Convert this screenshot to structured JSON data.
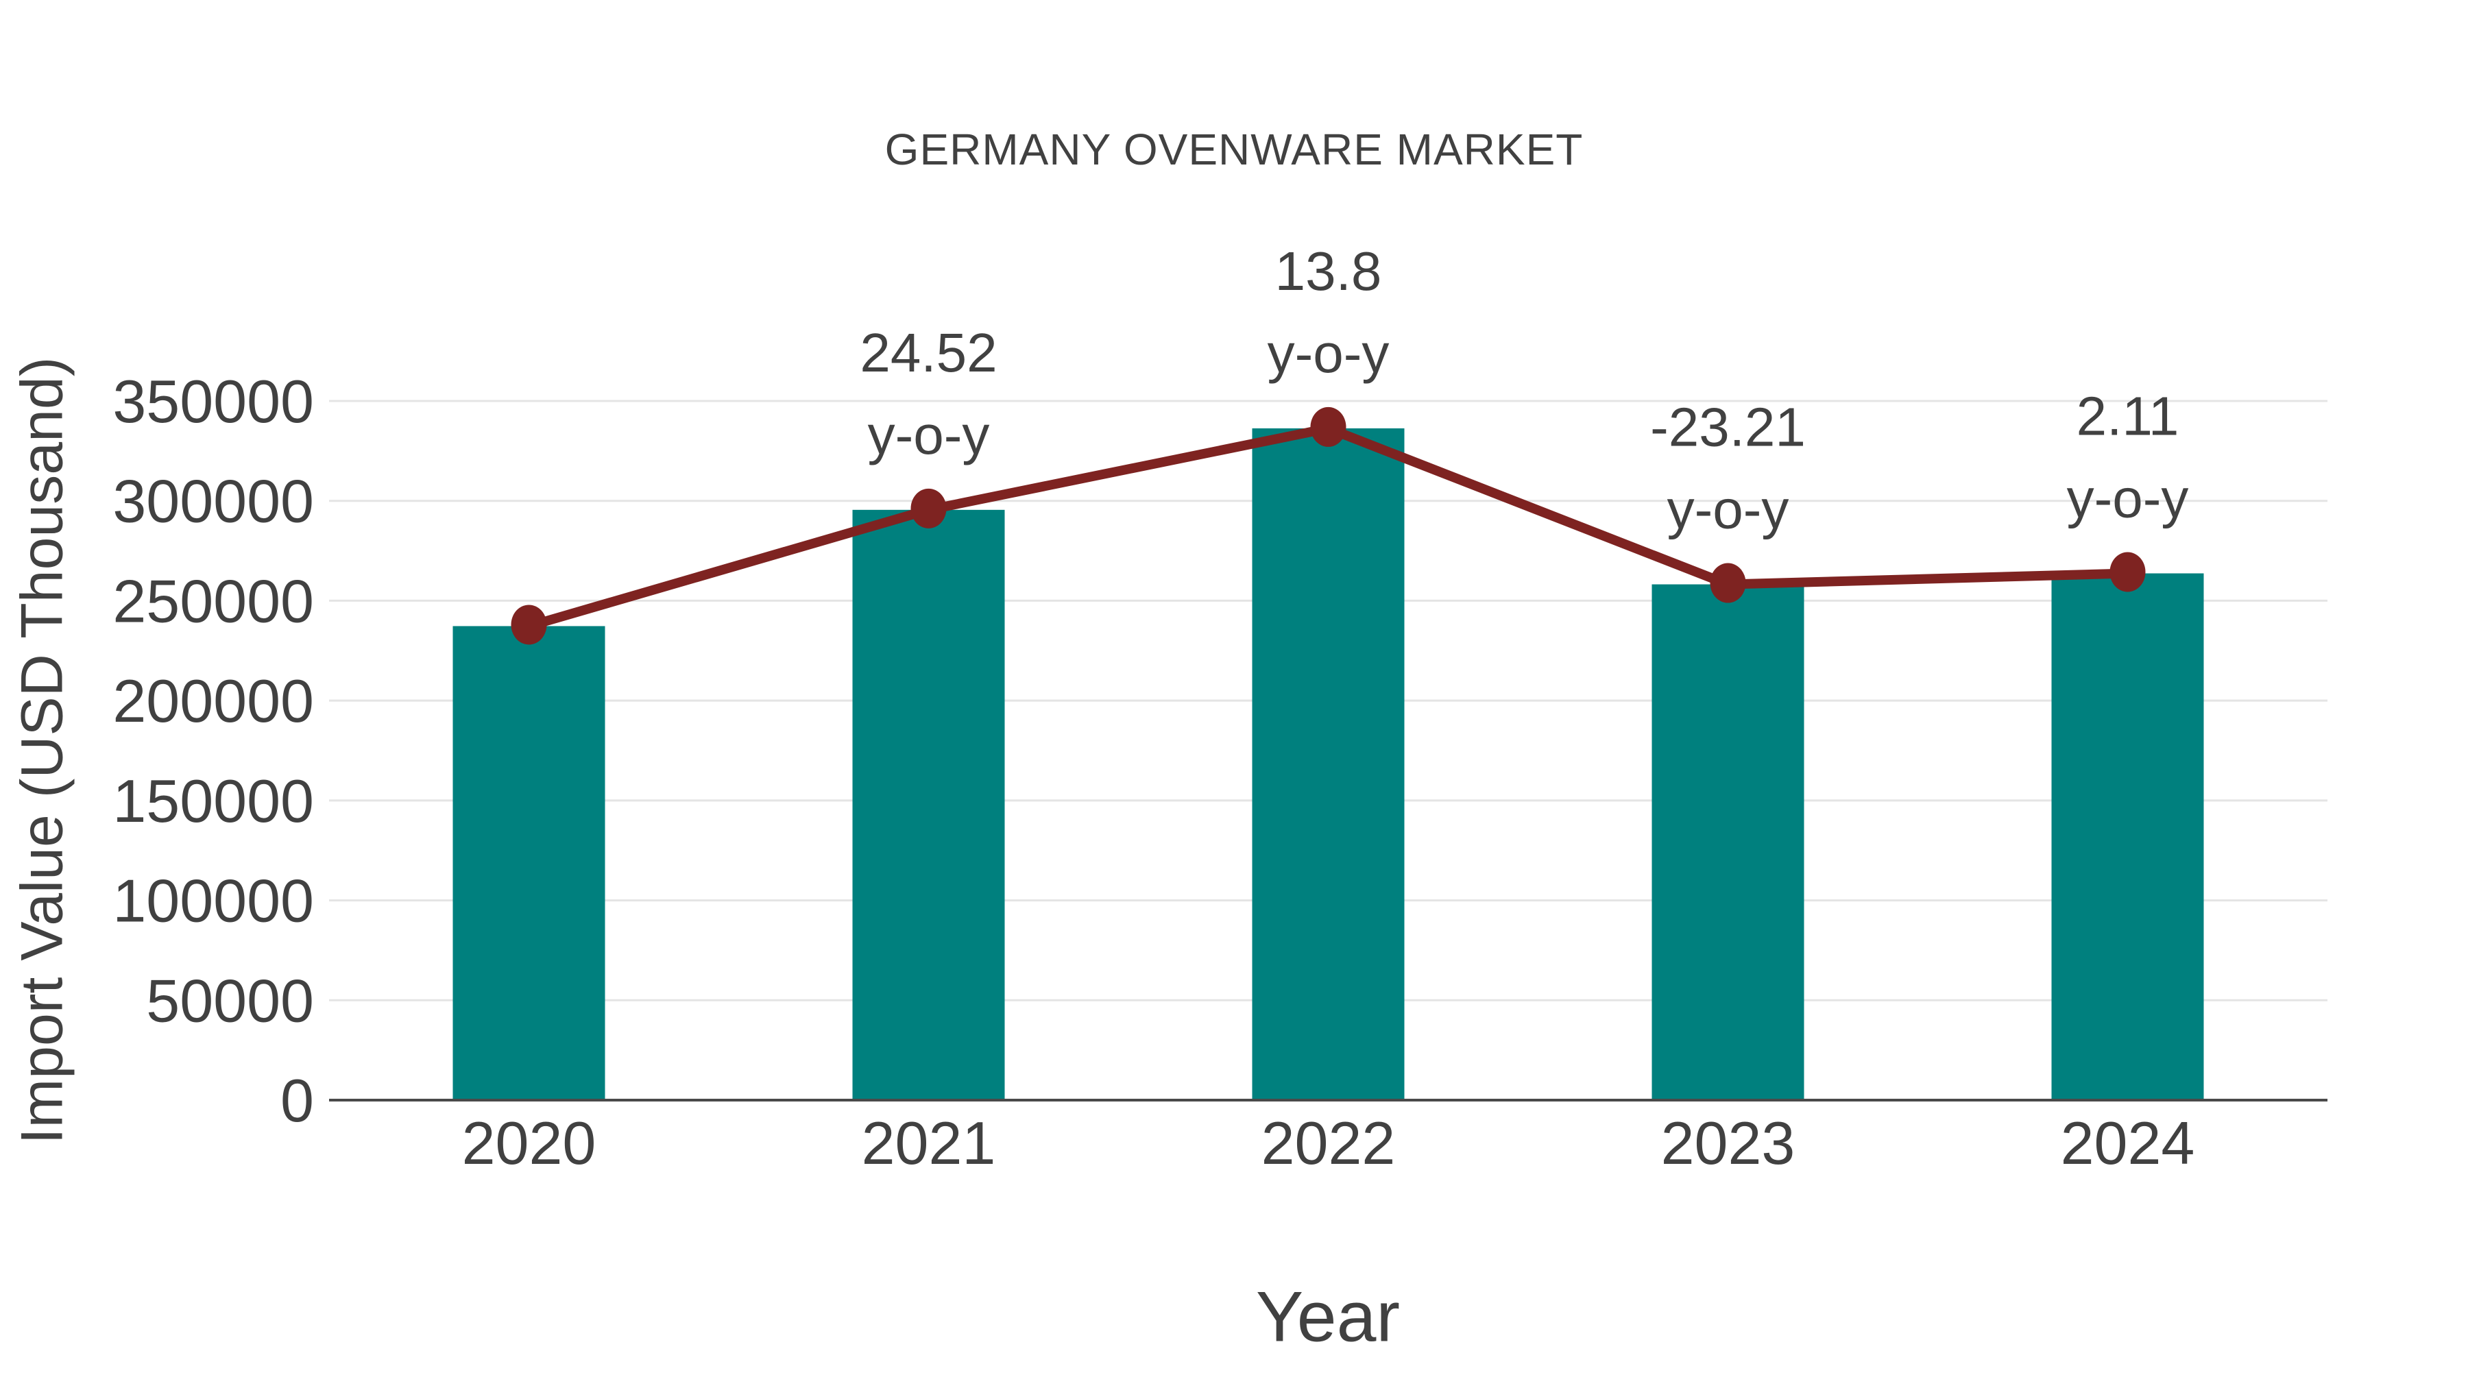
{
  "title": "GERMANY OVENWARE MARKET",
  "axes": {
    "x_title": "Year",
    "y_title": "Import Value (USD Thousand)"
  },
  "colors": {
    "bar": "#00807E",
    "line": "#7E2321",
    "grid": "#e4e4e4",
    "axis": "#4a4a4a",
    "text": "#414141"
  },
  "chart_data": {
    "type": "bar",
    "title": "GERMANY OVENWARE MARKET",
    "xlabel": "Year",
    "ylabel": "Import Value (USD Thousand)",
    "categories": [
      "2020",
      "2021",
      "2022",
      "2023",
      "2024"
    ],
    "series": [
      {
        "name": "Import Value (USD Thousand)",
        "type": "bar",
        "color": "#00807E",
        "values": [
          237300,
          295500,
          336300,
          258200,
          263700
        ]
      },
      {
        "name": "y-o-y growth (%)",
        "type": "line",
        "color": "#7E2321",
        "values": [
          null,
          24.52,
          13.8,
          -23.21,
          2.11
        ]
      }
    ],
    "annotations": [
      {
        "category": "2021",
        "line1": "24.52",
        "line2": "y-o-y"
      },
      {
        "category": "2022",
        "line1": "13.8",
        "line2": "y-o-y"
      },
      {
        "category": "2023",
        "line1": "-23.21",
        "line2": "y-o-y"
      },
      {
        "category": "2024",
        "line1": "2.11",
        "line2": "y-o-y"
      }
    ],
    "y_ticks": [
      "0",
      "50000",
      "100000",
      "150000",
      "200000",
      "250000",
      "300000",
      "350000"
    ],
    "ylim": [
      0,
      350000
    ],
    "grid": "horizontal",
    "legend": "none"
  }
}
